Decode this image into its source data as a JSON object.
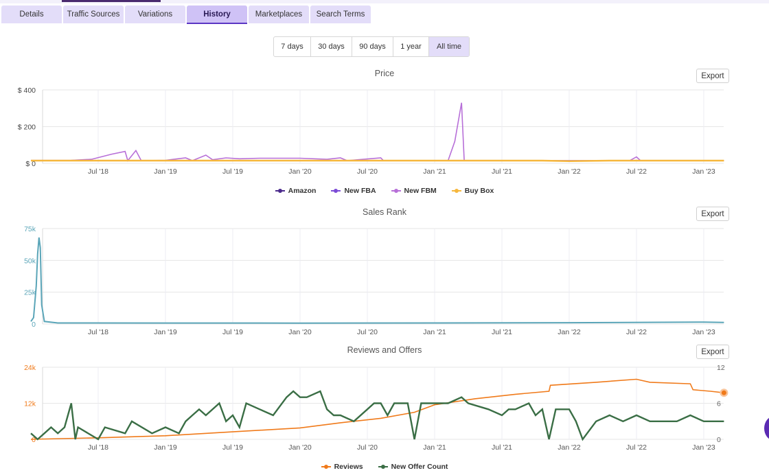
{
  "tabs": [
    {
      "label": "Details",
      "active": false
    },
    {
      "label": "Traffic Sources",
      "active": false
    },
    {
      "label": "Variations",
      "active": false
    },
    {
      "label": "History",
      "active": true
    },
    {
      "label": "Marketplaces",
      "active": false
    },
    {
      "label": "Search Terms",
      "active": false
    }
  ],
  "range_buttons": [
    {
      "label": "7 days",
      "active": false
    },
    {
      "label": "30 days",
      "active": false
    },
    {
      "label": "90 days",
      "active": false
    },
    {
      "label": "1 year",
      "active": false
    },
    {
      "label": "All time",
      "active": true
    }
  ],
  "export_label": "Export",
  "colors": {
    "amazon": "#4b2a8c",
    "new_fba": "#7b4ad6",
    "new_fbm": "#b76fd8",
    "buy_box": "#f6b73c",
    "sales_rank": "#5aa5b8",
    "reviews": "#f07a1a",
    "offers": "#3a6e45"
  },
  "x_ticks": [
    "Jul '18",
    "Jan '19",
    "Jul '19",
    "Jan '20",
    "Jul '20",
    "Jan '21",
    "Jul '21",
    "Jan '22",
    "Jul '22",
    "Jan '23"
  ],
  "chart_data": [
    {
      "type": "line",
      "title": "Price",
      "y_ticks": [
        "$ 400",
        "$ 200",
        "$ 0"
      ],
      "ylim": [
        0,
        400
      ],
      "legend": [
        {
          "name": "Amazon",
          "color_key": "amazon"
        },
        {
          "name": "New FBA",
          "color_key": "new_fba"
        },
        {
          "name": "New FBM",
          "color_key": "new_fbm"
        },
        {
          "name": "Buy Box",
          "color_key": "buy_box"
        }
      ],
      "series": [
        {
          "name": "New FBA",
          "points": [
            [
              2018.0,
              15
            ],
            [
              2023.15,
              15
            ]
          ]
        },
        {
          "name": "New FBM",
          "points": [
            [
              2018.0,
              16
            ],
            [
              2018.3,
              17
            ],
            [
              2018.45,
              22
            ],
            [
              2018.6,
              50
            ],
            [
              2018.7,
              65
            ],
            [
              2018.72,
              15
            ],
            [
              2018.78,
              70
            ],
            [
              2018.82,
              15
            ],
            [
              2019.0,
              17
            ],
            [
              2019.15,
              30
            ],
            [
              2019.2,
              15
            ],
            [
              2019.3,
              45
            ],
            [
              2019.35,
              20
            ],
            [
              2019.45,
              30
            ],
            [
              2019.55,
              25
            ],
            [
              2019.7,
              28
            ],
            [
              2019.85,
              28
            ],
            [
              2020.0,
              28
            ],
            [
              2020.2,
              22
            ],
            [
              2020.3,
              30
            ],
            [
              2020.35,
              15
            ],
            [
              2020.6,
              30
            ],
            [
              2020.62,
              15
            ],
            [
              2021.1,
              15
            ],
            [
              2021.15,
              120
            ],
            [
              2021.2,
              330
            ],
            [
              2021.22,
              15
            ],
            [
              2022.45,
              15
            ],
            [
              2022.5,
              35
            ],
            [
              2022.53,
              15
            ],
            [
              2023.15,
              15
            ]
          ]
        },
        {
          "name": "Buy Box",
          "points": [
            [
              2018.0,
              15
            ],
            [
              2018.25,
              15
            ],
            [
              2018.5,
              15
            ],
            [
              2018.9,
              15
            ],
            [
              2019.3,
              15
            ],
            [
              2019.6,
              15
            ],
            [
              2021.8,
              15
            ],
            [
              2022.0,
              12
            ],
            [
              2022.3,
              15
            ],
            [
              2023.15,
              15
            ]
          ]
        }
      ]
    },
    {
      "type": "line",
      "title": "Sales Rank",
      "y_ticks": [
        "75k",
        "50k",
        "25k",
        "0"
      ],
      "ylim": [
        0,
        75000
      ],
      "series": [
        {
          "name": "Sales Rank",
          "points": [
            [
              2018.0,
              2000
            ],
            [
              2018.02,
              5000
            ],
            [
              2018.04,
              30000
            ],
            [
              2018.05,
              55000
            ],
            [
              2018.06,
              68000
            ],
            [
              2018.07,
              60000
            ],
            [
              2018.08,
              15000
            ],
            [
              2018.1,
              2000
            ],
            [
              2018.2,
              800
            ],
            [
              2020.0,
              700
            ],
            [
              2021.0,
              800
            ],
            [
              2022.0,
              1000
            ],
            [
              2023.0,
              1500
            ],
            [
              2023.15,
              1200
            ]
          ]
        }
      ]
    },
    {
      "type": "line",
      "title": "Reviews and Offers",
      "y_ticks_left": [
        "24k",
        "12k",
        "0"
      ],
      "y_ticks_right": [
        "12",
        "6",
        "0"
      ],
      "ylim_left": [
        0,
        24000
      ],
      "ylim_right": [
        0,
        12
      ],
      "legend": [
        {
          "name": "Reviews",
          "color_key": "reviews"
        },
        {
          "name": "New Offer Count",
          "color_key": "offers"
        }
      ],
      "series": [
        {
          "name": "Reviews",
          "axis": "left",
          "points": [
            [
              2018.0,
              0
            ],
            [
              2018.5,
              500
            ],
            [
              2019.0,
              1200
            ],
            [
              2019.5,
              2500
            ],
            [
              2020.0,
              3800
            ],
            [
              2020.3,
              5500
            ],
            [
              2020.6,
              7000
            ],
            [
              2020.85,
              9000
            ],
            [
              2021.0,
              11500
            ],
            [
              2021.3,
              13500
            ],
            [
              2021.6,
              15000
            ],
            [
              2021.85,
              16000
            ],
            [
              2021.86,
              18000
            ],
            [
              2022.2,
              19000
            ],
            [
              2022.5,
              20000
            ],
            [
              2022.6,
              19000
            ],
            [
              2022.9,
              18500
            ],
            [
              2022.92,
              16500
            ],
            [
              2023.05,
              16000
            ],
            [
              2023.15,
              15500
            ]
          ]
        },
        {
          "name": "New Offer Count",
          "axis": "right",
          "points": [
            [
              2018.0,
              1
            ],
            [
              2018.05,
              0
            ],
            [
              2018.1,
              1
            ],
            [
              2018.15,
              2
            ],
            [
              2018.2,
              1
            ],
            [
              2018.25,
              2
            ],
            [
              2018.3,
              6
            ],
            [
              2018.33,
              0
            ],
            [
              2018.35,
              2
            ],
            [
              2018.5,
              0
            ],
            [
              2018.55,
              2
            ],
            [
              2018.7,
              1
            ],
            [
              2018.75,
              3
            ],
            [
              2018.9,
              1
            ],
            [
              2019.0,
              2
            ],
            [
              2019.1,
              1
            ],
            [
              2019.15,
              3
            ],
            [
              2019.2,
              4
            ],
            [
              2019.25,
              5
            ],
            [
              2019.3,
              4
            ],
            [
              2019.4,
              6
            ],
            [
              2019.45,
              3
            ],
            [
              2019.5,
              4
            ],
            [
              2019.55,
              2
            ],
            [
              2019.6,
              6
            ],
            [
              2019.7,
              5
            ],
            [
              2019.8,
              4
            ],
            [
              2019.9,
              7
            ],
            [
              2019.95,
              8
            ],
            [
              2020.0,
              7
            ],
            [
              2020.05,
              7
            ],
            [
              2020.15,
              8
            ],
            [
              2020.2,
              5
            ],
            [
              2020.25,
              4
            ],
            [
              2020.3,
              4
            ],
            [
              2020.4,
              3
            ],
            [
              2020.5,
              5
            ],
            [
              2020.55,
              6
            ],
            [
              2020.6,
              6
            ],
            [
              2020.65,
              4
            ],
            [
              2020.7,
              6
            ],
            [
              2020.8,
              6
            ],
            [
              2020.85,
              0
            ],
            [
              2020.9,
              6
            ],
            [
              2021.0,
              6
            ],
            [
              2021.1,
              6
            ],
            [
              2021.2,
              7
            ],
            [
              2021.25,
              6
            ],
            [
              2021.4,
              5
            ],
            [
              2021.5,
              4
            ],
            [
              2021.55,
              5
            ],
            [
              2021.6,
              5
            ],
            [
              2021.7,
              6
            ],
            [
              2021.75,
              4
            ],
            [
              2021.8,
              5
            ],
            [
              2021.85,
              0
            ],
            [
              2021.9,
              5
            ],
            [
              2022.0,
              5
            ],
            [
              2022.05,
              3
            ],
            [
              2022.1,
              0
            ],
            [
              2022.2,
              3
            ],
            [
              2022.3,
              4
            ],
            [
              2022.4,
              3
            ],
            [
              2022.5,
              4
            ],
            [
              2022.6,
              3
            ],
            [
              2022.8,
              3
            ],
            [
              2022.9,
              4
            ],
            [
              2023.0,
              3
            ],
            [
              2023.15,
              3
            ]
          ]
        }
      ]
    }
  ]
}
